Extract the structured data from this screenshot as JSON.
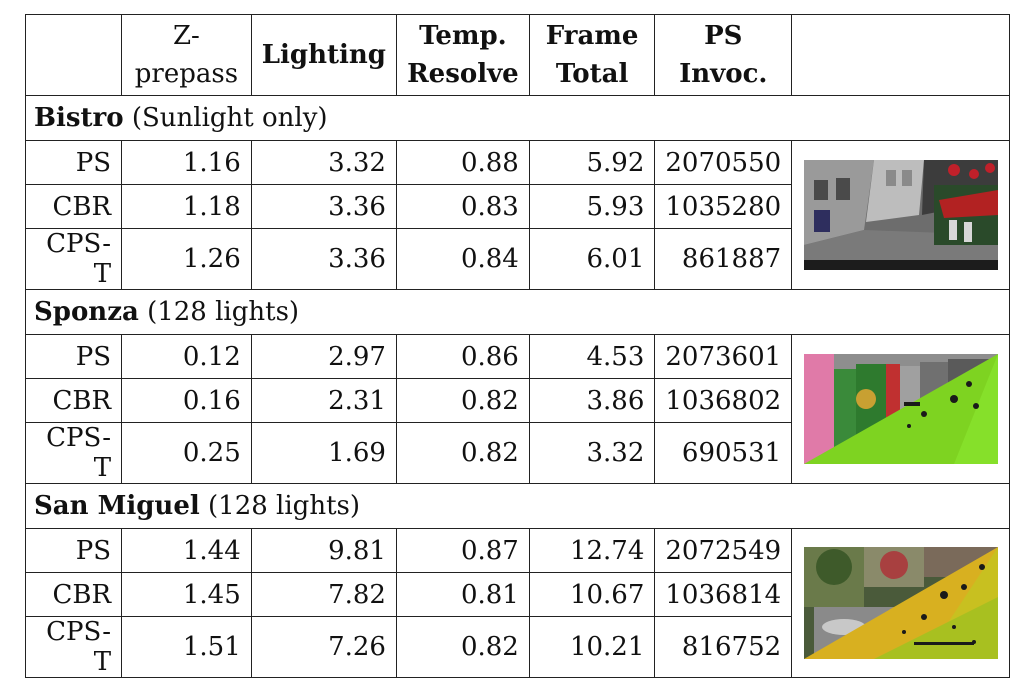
{
  "headers": {
    "zprepass": [
      "Z-",
      "prepass"
    ],
    "lighting": "Lighting",
    "temp_resolve": [
      "Temp.",
      "Resolve"
    ],
    "frame_total": [
      "Frame",
      "Total"
    ],
    "ps_invoc": [
      "PS",
      "Invoc."
    ]
  },
  "sections": [
    {
      "scene": "Bistro",
      "note": "(Sunlight only)",
      "rows": [
        {
          "method": "PS",
          "zprepass": "1.16",
          "lighting": "3.32",
          "temp": "0.88",
          "frame": "5.92",
          "invoc": "2070550"
        },
        {
          "method": "CBR",
          "zprepass": "1.18",
          "lighting": "3.36",
          "temp": "0.83",
          "frame": "5.93",
          "invoc": "1035280"
        },
        {
          "method": "CPS-T",
          "zprepass": "1.26",
          "lighting": "3.36",
          "temp": "0.84",
          "frame": "6.01",
          "invoc": "861887"
        }
      ]
    },
    {
      "scene": "Sponza",
      "note": "(128 lights)",
      "rows": [
        {
          "method": "PS",
          "zprepass": "0.12",
          "lighting": "2.97",
          "temp": "0.86",
          "frame": "4.53",
          "invoc": "2073601"
        },
        {
          "method": "CBR",
          "zprepass": "0.16",
          "lighting": "2.31",
          "temp": "0.82",
          "frame": "3.86",
          "invoc": "1036802"
        },
        {
          "method": "CPS-T",
          "zprepass": "0.25",
          "lighting": "1.69",
          "temp": "0.82",
          "frame": "3.32",
          "invoc": "690531"
        }
      ]
    },
    {
      "scene": "San Miguel",
      "note": "(128 lights)",
      "rows": [
        {
          "method": "PS",
          "zprepass": "1.44",
          "lighting": "9.81",
          "temp": "0.87",
          "frame": "12.74",
          "invoc": "2072549"
        },
        {
          "method": "CBR",
          "zprepass": "1.45",
          "lighting": "7.82",
          "temp": "0.81",
          "frame": "10.67",
          "invoc": "1036814"
        },
        {
          "method": "CPS-T",
          "zprepass": "1.51",
          "lighting": "7.26",
          "temp": "0.82",
          "frame": "10.21",
          "invoc": "816752"
        }
      ]
    }
  ]
}
